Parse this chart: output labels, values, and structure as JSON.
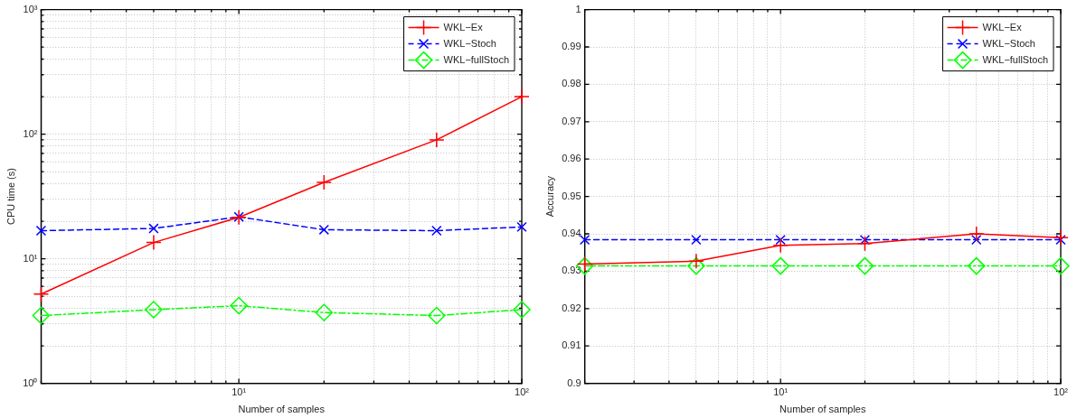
{
  "chart_data": [
    {
      "type": "line",
      "xlabel": "Number of samples",
      "ylabel": "CPU time (s)",
      "log": "xy",
      "grid": true,
      "legend": "top right",
      "x": [
        2,
        5,
        10,
        20,
        50,
        100
      ],
      "xlim": [
        2,
        100
      ],
      "xticks": [
        {
          "value": 2,
          "label": null
        },
        {
          "value": 3,
          "label": null
        },
        {
          "value": 4,
          "label": null
        },
        {
          "value": 5,
          "label": null
        },
        {
          "value": 6,
          "label": null
        },
        {
          "value": 7,
          "label": null
        },
        {
          "value": 8,
          "label": null
        },
        {
          "value": 9,
          "label": null
        },
        {
          "value": 10,
          "label": "10¹"
        },
        {
          "value": 20,
          "label": null
        },
        {
          "value": 30,
          "label": null
        },
        {
          "value": 40,
          "label": null
        },
        {
          "value": 50,
          "label": null
        },
        {
          "value": 60,
          "label": null
        },
        {
          "value": 70,
          "label": null
        },
        {
          "value": 80,
          "label": null
        },
        {
          "value": 90,
          "label": null
        },
        {
          "value": 100,
          "label": "10²"
        }
      ],
      "ylim": [
        1,
        1000
      ],
      "yticks": [
        {
          "value": 1,
          "label": "10⁰"
        },
        {
          "value": 2,
          "label": null
        },
        {
          "value": 3,
          "label": null
        },
        {
          "value": 4,
          "label": null
        },
        {
          "value": 5,
          "label": null
        },
        {
          "value": 6,
          "label": null
        },
        {
          "value": 7,
          "label": null
        },
        {
          "value": 8,
          "label": null
        },
        {
          "value": 9,
          "label": null
        },
        {
          "value": 10,
          "label": "10¹"
        },
        {
          "value": 20,
          "label": null
        },
        {
          "value": 30,
          "label": null
        },
        {
          "value": 40,
          "label": null
        },
        {
          "value": 50,
          "label": null
        },
        {
          "value": 60,
          "label": null
        },
        {
          "value": 70,
          "label": null
        },
        {
          "value": 80,
          "label": null
        },
        {
          "value": 90,
          "label": null
        },
        {
          "value": 100,
          "label": "10²"
        },
        {
          "value": 200,
          "label": null
        },
        {
          "value": 300,
          "label": null
        },
        {
          "value": 400,
          "label": null
        },
        {
          "value": 500,
          "label": null
        },
        {
          "value": 600,
          "label": null
        },
        {
          "value": 700,
          "label": null
        },
        {
          "value": 800,
          "label": null
        },
        {
          "value": 900,
          "label": null
        },
        {
          "value": 1000,
          "label": "10³"
        }
      ],
      "series": [
        {
          "name": "WKL−Ex",
          "color": "#ff0000",
          "marker": "cross",
          "line_style": "solid",
          "values": [
            5.2,
            13.5,
            21.5,
            41,
            90,
            200
          ]
        },
        {
          "name": "WKL−Stoch",
          "color": "#0000ff",
          "marker": "x",
          "line_style": "dashed",
          "values": [
            16.8,
            17.5,
            21.7,
            17.1,
            16.8,
            18
          ]
        },
        {
          "name": "WKL−fullStoch",
          "color": "#00ff00",
          "marker": "diamond",
          "line_style": "dashdot",
          "values": [
            3.5,
            3.9,
            4.2,
            3.7,
            3.5,
            3.9
          ]
        }
      ]
    },
    {
      "type": "line",
      "xlabel": "Number of samples",
      "ylabel": "Accuracy",
      "log": "x",
      "grid": true,
      "legend": "top right",
      "x": [
        2,
        5,
        10,
        20,
        50,
        100
      ],
      "xlim": [
        2,
        100
      ],
      "xticks": [
        {
          "value": 2,
          "label": null
        },
        {
          "value": 3,
          "label": null
        },
        {
          "value": 4,
          "label": null
        },
        {
          "value": 5,
          "label": null
        },
        {
          "value": 6,
          "label": null
        },
        {
          "value": 7,
          "label": null
        },
        {
          "value": 8,
          "label": null
        },
        {
          "value": 9,
          "label": null
        },
        {
          "value": 10,
          "label": "10¹"
        },
        {
          "value": 20,
          "label": null
        },
        {
          "value": 30,
          "label": null
        },
        {
          "value": 40,
          "label": null
        },
        {
          "value": 50,
          "label": null
        },
        {
          "value": 60,
          "label": null
        },
        {
          "value": 70,
          "label": null
        },
        {
          "value": 80,
          "label": null
        },
        {
          "value": 90,
          "label": null
        },
        {
          "value": 100,
          "label": "10²"
        }
      ],
      "ylim": [
        0.9,
        1
      ],
      "yticks": [
        0.9,
        0.91,
        0.92,
        0.93,
        0.94,
        0.95,
        0.96,
        0.97,
        0.98,
        0.99,
        1
      ],
      "series": [
        {
          "name": "WKL−Ex",
          "color": "#ff0000",
          "marker": "cross",
          "line_style": "solid",
          "values": [
            0.9319,
            0.9327,
            0.9369,
            0.9374,
            0.94,
            0.939
          ]
        },
        {
          "name": "WKL−Stoch",
          "color": "#0000ff",
          "marker": "x",
          "line_style": "dashed",
          "values": [
            0.9384,
            0.9384,
            0.9384,
            0.9384,
            0.9384,
            0.9384
          ]
        },
        {
          "name": "WKL−fullStoch",
          "color": "#00ff00",
          "marker": "diamond",
          "line_style": "dashdot",
          "values": [
            0.9314,
            0.9314,
            0.9314,
            0.9314,
            0.9314,
            0.9314
          ]
        }
      ]
    }
  ]
}
